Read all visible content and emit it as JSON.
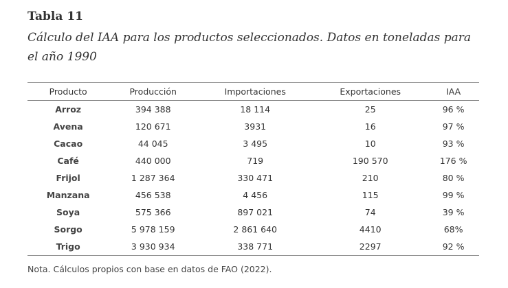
{
  "header": {
    "title": "Tabla 11",
    "subtitle": "Cálculo del IAA para los productos seleccionados. Datos en toneladas para el año 1990"
  },
  "table": {
    "columns": [
      "Producto",
      "Producción",
      "Importaciones",
      "Exportaciones",
      "IAA"
    ],
    "rows": [
      [
        "Arroz",
        "394 388",
        "18 114",
        "25",
        "96 %"
      ],
      [
        "Avena",
        "120 671",
        "3931",
        "16",
        "97 %"
      ],
      [
        "Cacao",
        "44 045",
        "3 495",
        "10",
        "93 %"
      ],
      [
        "Café",
        "440 000",
        "719",
        "190 570",
        "176 %"
      ],
      [
        "Frijol",
        "1 287 364",
        "330 471",
        "210",
        "80 %"
      ],
      [
        "Manzana",
        "456 538",
        "4 456",
        "115",
        "99 %"
      ],
      [
        "Soya",
        "575 366",
        "897 021",
        "74",
        "39 %"
      ],
      [
        "Sorgo",
        "5 978 159",
        "2 861 640",
        "4410",
        "68%"
      ],
      [
        "Trigo",
        "3 930 934",
        "338 771",
        "2297",
        "92 %"
      ]
    ]
  },
  "note": "Nota. Cálculos propios con base en datos de FAO (2022)."
}
